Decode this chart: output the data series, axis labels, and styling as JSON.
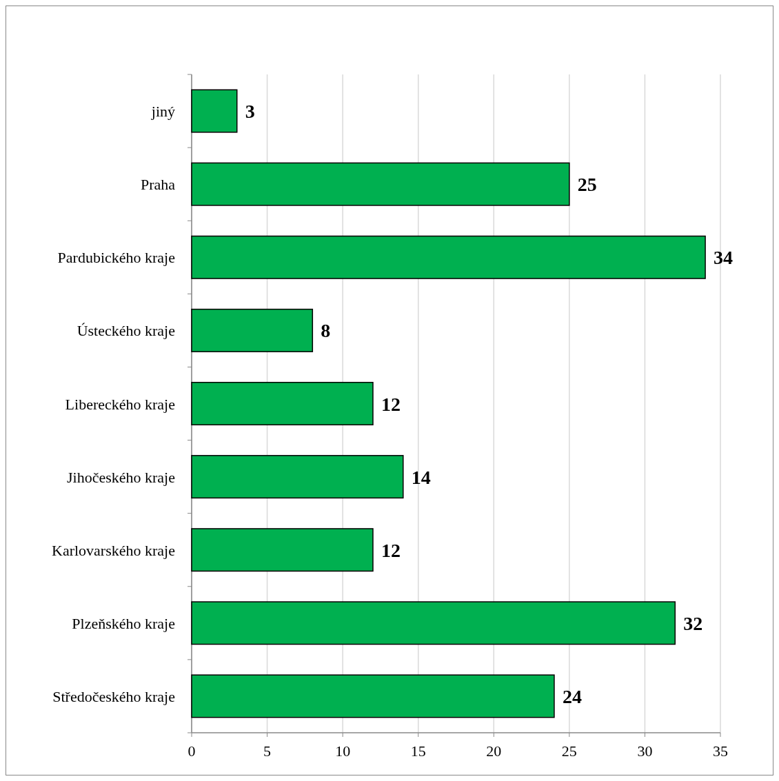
{
  "chart_data": {
    "type": "bar",
    "orientation": "horizontal",
    "categories": [
      "jiný",
      "Praha",
      "Pardubického kraje",
      "Ústeckého kraje",
      "Libereckého kraje",
      "Jihočeského kraje",
      "Karlovarského kraje",
      "Plzeňského kraje",
      "Středočeského kraje"
    ],
    "values": [
      3,
      25,
      34,
      8,
      12,
      14,
      12,
      32,
      24
    ],
    "color": "#00b050",
    "data_labels": true,
    "grid": "x",
    "xlim": [
      0,
      35
    ],
    "xticks": [
      0,
      5,
      10,
      15,
      20,
      25,
      30,
      35
    ]
  }
}
